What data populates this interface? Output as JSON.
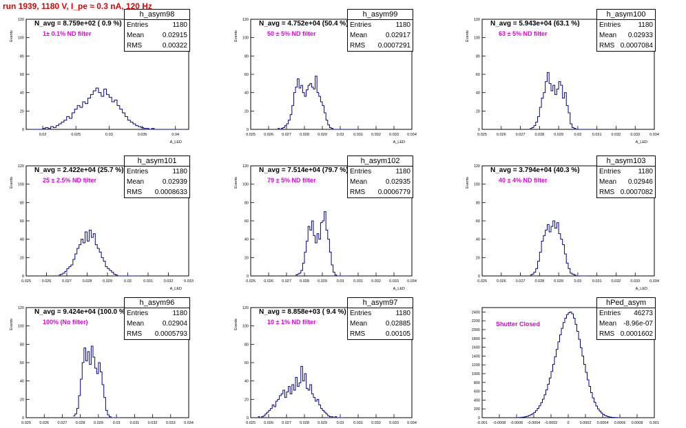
{
  "run_title": "run 1939,  1180 V, I_pe ≈ 0.3 nA, 120 Hz",
  "stat_labels": {
    "entries": "Entries",
    "mean": "Mean",
    "rms": "RMS"
  },
  "colors": {
    "hist": "#00008b",
    "title": "#e00000",
    "filter": "#e000e0"
  },
  "chart_data": [
    {
      "type": "bar",
      "hist": "h_asym98",
      "navg": "N_avg = 8.759e+02 ( 0.9 %)",
      "filter": "1± 0.1% ND filter",
      "entries": "1180",
      "mean": "0.02915",
      "rms": "0.00322",
      "ylabel": "Events",
      "xlabel": "A_LED",
      "xlim": [
        0.0175,
        0.042
      ],
      "ylim": [
        0,
        120
      ],
      "xticks": [
        0.02,
        0.025,
        0.03,
        0.035,
        0.04
      ],
      "xticklabels": [
        "0.02",
        "0.025",
        "0.03",
        "0.035",
        "0.04"
      ],
      "yticks": [
        0,
        20,
        40,
        60,
        80,
        100,
        120
      ],
      "bins_x0": 0.018,
      "bin_w": 0.0004,
      "values": [
        0,
        0,
        0,
        0,
        0,
        1,
        2,
        1,
        3,
        2,
        4,
        6,
        8,
        10,
        14,
        12,
        18,
        22,
        26,
        24,
        30,
        28,
        34,
        38,
        42,
        45,
        40,
        36,
        44,
        38,
        35,
        30,
        32,
        26,
        22,
        18,
        14,
        10,
        8,
        6,
        4,
        3,
        2,
        1,
        1,
        0,
        1,
        0,
        0,
        0,
        0,
        0,
        0,
        0,
        0,
        0,
        0,
        0,
        0
      ]
    },
    {
      "type": "bar",
      "hist": "h_asym99",
      "navg": "N_avg = 4.752e+04 (50.4 %)",
      "filter": "50 ± 5% ND filter",
      "entries": "1180",
      "mean": "0.02917",
      "rms": "0.0007291",
      "ylabel": "Events",
      "xlabel": "A_LED",
      "xlim": [
        0.025,
        0.034
      ],
      "ylim": [
        0,
        120
      ],
      "xticks": [
        0.025,
        0.026,
        0.027,
        0.028,
        0.029,
        0.03,
        0.031,
        0.032,
        0.033,
        0.034
      ],
      "xticklabels": [
        "0.025",
        "0.026",
        "0.027",
        "0.028",
        "0.029",
        "0.03",
        "0.031",
        "0.032",
        "0.033",
        "0.034"
      ],
      "yticks": [
        0,
        20,
        40,
        60,
        80,
        100,
        120
      ],
      "bins_x0": 0.0265,
      "bin_w": 0.0001,
      "values": [
        1,
        0,
        1,
        2,
        4,
        6,
        10,
        16,
        26,
        40,
        46,
        55,
        45,
        48,
        40,
        36,
        43,
        48,
        50,
        46,
        44,
        58,
        40,
        36,
        30,
        26,
        18,
        10,
        5,
        2,
        1,
        0,
        0,
        0,
        0,
        0,
        0,
        0,
        0,
        0,
        0,
        0,
        0,
        0,
        0
      ]
    },
    {
      "type": "bar",
      "hist": "h_asym100",
      "navg": "N_avg = 5.943e+04 (63.1 %)",
      "filter": "63 ± 5% ND filter",
      "entries": "1180",
      "mean": "0.02933",
      "rms": "0.0007084",
      "ylabel": "Events",
      "xlabel": "A_LED",
      "xlim": [
        0.025,
        0.034
      ],
      "ylim": [
        0,
        120
      ],
      "xticks": [
        0.025,
        0.026,
        0.027,
        0.028,
        0.029,
        0.03,
        0.031,
        0.032,
        0.033,
        0.034
      ],
      "xticklabels": [
        "0.025",
        "0.026",
        "0.027",
        "0.028",
        "0.029",
        "0.03",
        "0.031",
        "0.032",
        "0.033",
        "0.034"
      ],
      "yticks": [
        0,
        20,
        40,
        60,
        80,
        100,
        120
      ],
      "bins_x0": 0.0275,
      "bin_w": 0.0001,
      "values": [
        1,
        2,
        4,
        8,
        14,
        24,
        34,
        40,
        52,
        62,
        50,
        42,
        48,
        38,
        44,
        52,
        48,
        34,
        40,
        26,
        18,
        6,
        2,
        1,
        0,
        0,
        0,
        0,
        0,
        0,
        0,
        0,
        0,
        0
      ]
    },
    {
      "type": "bar",
      "hist": "h_asym101",
      "navg": "N_avg = 2.422e+04 (25.7 %)",
      "filter": "25 ± 2.5% ND filter",
      "entries": "1180",
      "mean": "0.02939",
      "rms": "0.0008633",
      "ylabel": "Events",
      "xlabel": "A_LED",
      "xlim": [
        0.025,
        0.033
      ],
      "ylim": [
        0,
        120
      ],
      "xticks": [
        0.025,
        0.026,
        0.027,
        0.028,
        0.029,
        0.03,
        0.031,
        0.032,
        0.033
      ],
      "xticklabels": [
        "0.025",
        "0.026",
        "0.027",
        "0.028",
        "0.029",
        "0.03",
        "0.031",
        "0.032",
        "0.033"
      ],
      "yticks": [
        0,
        20,
        40,
        60,
        80,
        100,
        120
      ],
      "bins_x0": 0.0266,
      "bin_w": 0.0001,
      "values": [
        1,
        2,
        3,
        5,
        8,
        10,
        12,
        18,
        24,
        30,
        34,
        40,
        36,
        48,
        38,
        50,
        42,
        46,
        34,
        30,
        26,
        20,
        16,
        10,
        8,
        6,
        4,
        2,
        1,
        0,
        0,
        0,
        0,
        0,
        0,
        0,
        0,
        0,
        0,
        0
      ]
    },
    {
      "type": "bar",
      "hist": "h_asym102",
      "navg": "N_avg = 7.514e+04 (79.7 %)",
      "filter": "79 ± 5% ND filter",
      "entries": "1180",
      "mean": "0.02935",
      "rms": "0.0006779",
      "ylabel": "Events",
      "xlabel": "A_LED",
      "xlim": [
        0.025,
        0.034
      ],
      "ylim": [
        0,
        120
      ],
      "xticks": [
        0.025,
        0.026,
        0.027,
        0.028,
        0.029,
        0.03,
        0.031,
        0.032,
        0.033,
        0.034
      ],
      "xticklabels": [
        "0.025",
        "0.026",
        "0.027",
        "0.028",
        "0.029",
        "0.03",
        "0.031",
        "0.032",
        "0.033",
        "0.034"
      ],
      "yticks": [
        0,
        20,
        40,
        60,
        80,
        100,
        120
      ],
      "bins_x0": 0.0275,
      "bin_w": 0.0001,
      "values": [
        1,
        2,
        3,
        6,
        14,
        26,
        38,
        54,
        50,
        60,
        44,
        36,
        46,
        40,
        58,
        60,
        70,
        50,
        40,
        26,
        12,
        4,
        1,
        0,
        0,
        0,
        0,
        0,
        0,
        0
      ]
    },
    {
      "type": "bar",
      "hist": "h_asym103",
      "navg": "N_avg = 3.794e+04 (40.3 %)",
      "filter": "40 ± 4% ND filter",
      "entries": "1180",
      "mean": "0.02946",
      "rms": "0.0007082",
      "ylabel": "Events",
      "xlabel": "A_LED",
      "xlim": [
        0.025,
        0.034
      ],
      "ylim": [
        0,
        120
      ],
      "xticks": [
        0.025,
        0.026,
        0.027,
        0.028,
        0.029,
        0.03,
        0.031,
        0.032,
        0.033,
        0.034
      ],
      "xticklabels": [
        "0.025",
        "0.026",
        "0.027",
        "0.028",
        "0.029",
        "0.03",
        "0.031",
        "0.032",
        "0.033",
        "0.034"
      ],
      "yticks": [
        0,
        20,
        40,
        60,
        80,
        100,
        120
      ],
      "bins_x0": 0.0275,
      "bin_w": 0.0001,
      "values": [
        1,
        2,
        4,
        8,
        16,
        26,
        38,
        44,
        50,
        56,
        48,
        54,
        60,
        52,
        58,
        46,
        40,
        34,
        24,
        14,
        8,
        3,
        2,
        1,
        0,
        0,
        0,
        0,
        0,
        0
      ]
    },
    {
      "type": "bar",
      "hist": "h_asym96",
      "navg": "N_avg = 9.424e+04 (100.0 %)",
      "filter": "100% (No filter)",
      "entries": "1180",
      "mean": "0.02904",
      "rms": "0.0005793",
      "ylabel": "Events",
      "xlabel": "A_LED",
      "xlim": [
        0.025,
        0.034
      ],
      "ylim": [
        0,
        120
      ],
      "xticks": [
        0.025,
        0.026,
        0.027,
        0.028,
        0.029,
        0.03,
        0.031,
        0.032,
        0.033,
        0.034
      ],
      "xticklabels": [
        "0.025",
        "0.026",
        "0.027",
        "0.028",
        "0.029",
        "0.03",
        "0.031",
        "0.032",
        "0.033",
        "0.034"
      ],
      "yticks": [
        0,
        20,
        40,
        60,
        80,
        100,
        120
      ],
      "bins_x0": 0.0276,
      "bin_w": 0.0001,
      "values": [
        2,
        4,
        10,
        24,
        42,
        60,
        76,
        62,
        72,
        58,
        78,
        66,
        54,
        48,
        60,
        50,
        36,
        22,
        8,
        3,
        1,
        0,
        0,
        0,
        0,
        0
      ]
    },
    {
      "type": "bar",
      "hist": "h_asym97",
      "navg": "N_avg = 8.858e+03 ( 9.4 %)",
      "filter": "10 ± 1% ND filter",
      "entries": "1180",
      "mean": "0.02885",
      "rms": "0.00105",
      "ylabel": "Events",
      "xlabel": "A_LED",
      "xlim": [
        0.025,
        0.034
      ],
      "ylim": [
        0,
        120
      ],
      "xticks": [
        0.025,
        0.026,
        0.027,
        0.028,
        0.029,
        0.03,
        0.031,
        0.032,
        0.033,
        0.034
      ],
      "xticklabels": [
        "0.025",
        "0.026",
        "0.027",
        "0.028",
        "0.029",
        "0.03",
        "0.031",
        "0.032",
        "0.033",
        "0.034"
      ],
      "yticks": [
        0,
        20,
        40,
        60,
        80,
        100,
        120
      ],
      "bins_x0": 0.0254,
      "bin_w": 0.0001,
      "values": [
        1,
        0,
        1,
        2,
        4,
        6,
        8,
        10,
        14,
        12,
        18,
        20,
        24,
        26,
        30,
        22,
        28,
        34,
        26,
        36,
        30,
        44,
        34,
        38,
        56,
        40,
        48,
        32,
        30,
        36,
        26,
        22,
        18,
        20,
        14,
        10,
        8,
        6,
        4,
        2,
        1,
        1,
        0,
        1,
        0,
        0,
        0,
        0
      ]
    },
    {
      "type": "bar",
      "hist": "hPed_asym",
      "navg": "",
      "filter": "Shutter Closed",
      "entries": "46273",
      "mean": "-8.96e-07",
      "rms": "0.0001602",
      "ylabel": "",
      "xlabel": "",
      "xlim": [
        -0.001,
        0.001
      ],
      "ylim": [
        0,
        2500
      ],
      "xticks": [
        -0.001,
        -0.0008,
        -0.0006,
        -0.0004,
        -0.0002,
        0,
        0.0002,
        0.0004,
        0.0006,
        0.0008,
        0.001
      ],
      "xticklabels": [
        "-0.001",
        "-0.0008",
        "-0.0006",
        "-0.0004",
        "-0.0002",
        "0",
        "0.0002",
        "0.0004",
        "0.0006",
        "0.0008",
        "0.001"
      ],
      "yticks": [
        0,
        200,
        400,
        600,
        800,
        1000,
        1200,
        1400,
        1600,
        1800,
        2000,
        2200,
        2400
      ],
      "bins_x0": -0.0006,
      "bin_w": 2e-05,
      "values": [
        2,
        4,
        6,
        10,
        16,
        24,
        34,
        48,
        66,
        90,
        120,
        160,
        210,
        270,
        340,
        420,
        520,
        630,
        760,
        900,
        1050,
        1210,
        1380,
        1550,
        1720,
        1880,
        2030,
        2160,
        2260,
        2340,
        2380,
        2400,
        2360,
        2260,
        2120,
        1960,
        1780,
        1590,
        1400,
        1210,
        1030,
        860,
        710,
        570,
        450,
        350,
        266,
        200,
        148,
        106,
        74,
        50,
        34,
        22,
        14,
        8,
        5,
        3,
        2,
        1
      ]
    }
  ]
}
